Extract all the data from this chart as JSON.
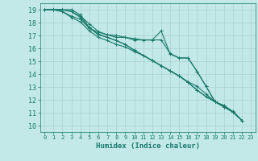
{
  "xlabel": "Humidex (Indice chaleur)",
  "bg_color": "#c2e8e8",
  "grid_color": "#aad0d0",
  "line_color": "#1a7a6a",
  "xlim": [
    -0.5,
    23.5
  ],
  "ylim": [
    9.5,
    19.5
  ],
  "xticks": [
    0,
    1,
    2,
    3,
    4,
    5,
    6,
    7,
    8,
    9,
    10,
    11,
    12,
    13,
    14,
    15,
    16,
    17,
    18,
    19,
    20,
    21,
    22,
    23
  ],
  "yticks": [
    10,
    11,
    12,
    13,
    14,
    15,
    16,
    17,
    18,
    19
  ],
  "lines": [
    [
      19.0,
      19.0,
      19.0,
      18.85,
      18.5,
      17.9,
      17.3,
      17.05,
      17.0,
      16.85,
      16.65,
      16.65,
      16.65,
      16.65,
      15.6,
      15.25,
      15.25,
      14.2,
      13.05,
      11.85,
      11.55,
      11.05,
      10.4
    ],
    [
      19.0,
      19.0,
      19.0,
      18.85,
      18.4,
      17.6,
      17.1,
      16.85,
      16.6,
      16.3,
      15.85,
      15.45,
      15.05,
      14.65,
      14.25,
      13.85,
      13.4,
      13.05,
      12.45,
      11.85,
      11.45,
      11.05,
      10.4
    ],
    [
      19.0,
      19.0,
      18.85,
      18.4,
      18.05,
      17.35,
      16.85,
      16.6,
      16.3,
      16.1,
      15.75,
      15.45,
      15.05,
      14.65,
      14.25,
      13.85,
      13.35,
      12.75,
      12.25,
      11.85,
      11.45,
      11.05,
      10.4
    ],
    [
      19.0,
      19.0,
      18.85,
      18.5,
      18.25,
      17.55,
      17.25,
      17.05,
      16.85,
      16.85,
      16.75,
      16.65,
      16.65,
      17.35,
      15.55,
      15.25,
      15.25,
      14.2,
      13.05,
      11.85,
      11.55,
      11.1,
      10.4
    ],
    [
      19.0,
      19.0,
      19.0,
      19.0,
      18.6,
      17.6,
      17.05,
      16.85,
      16.6,
      16.3,
      15.85,
      15.45,
      15.05,
      14.65,
      14.25,
      13.85,
      13.35,
      12.75,
      12.25,
      11.85,
      11.45,
      11.05,
      10.4
    ]
  ]
}
